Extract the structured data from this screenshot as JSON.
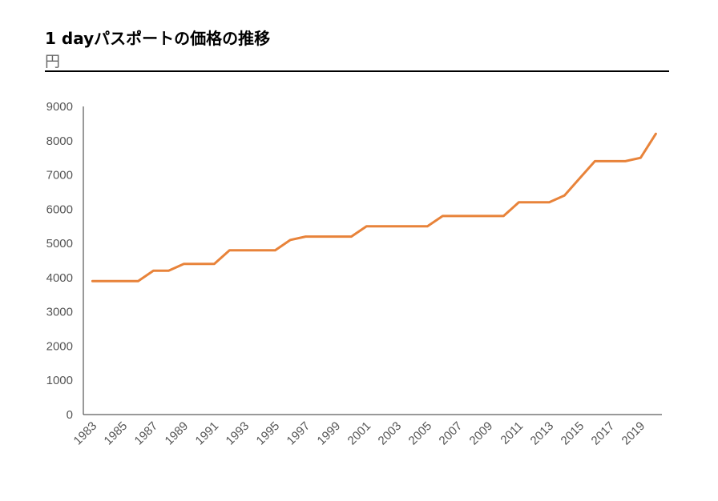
{
  "header": {
    "title": "1 dayパスポートの価格の推移",
    "unit": "円"
  },
  "colors": {
    "line": "#E8833A",
    "axis": "#333333",
    "tick_text": "#555555",
    "rule": "#000000"
  },
  "chart_data": {
    "type": "line",
    "title": "1 dayパスポートの価格の推移",
    "ylabel": "円",
    "xlabel": "",
    "ylim": [
      0,
      9000
    ],
    "yticks": [
      0,
      1000,
      2000,
      3000,
      4000,
      5000,
      6000,
      7000,
      8000,
      9000
    ],
    "xticks": [
      1983,
      1985,
      1987,
      1989,
      1991,
      1993,
      1995,
      1997,
      1999,
      2001,
      2003,
      2005,
      2007,
      2009,
      2011,
      2013,
      2015,
      2017,
      2019
    ],
    "grid": false,
    "legend": "none",
    "series": [
      {
        "x": [
          1983,
          1984,
          1985,
          1986,
          1987,
          1988,
          1989,
          1990,
          1991,
          1992,
          1993,
          1994,
          1995,
          1996,
          1997,
          1998,
          1999,
          2000,
          2001,
          2002,
          2003,
          2004,
          2005,
          2006,
          2007,
          2008,
          2009,
          2010,
          2011,
          2012,
          2013,
          2014,
          2015,
          2016,
          2017,
          2018,
          2019,
          2020
        ],
        "values": [
          3900,
          3900,
          3900,
          3900,
          4200,
          4200,
          4400,
          4400,
          4400,
          4800,
          4800,
          4800,
          4800,
          5100,
          5200,
          5200,
          5200,
          5200,
          5500,
          5500,
          5500,
          5500,
          5500,
          5800,
          5800,
          5800,
          5800,
          5800,
          6200,
          6200,
          6200,
          6400,
          6900,
          7400,
          7400,
          7400,
          7500,
          8200
        ]
      }
    ]
  }
}
